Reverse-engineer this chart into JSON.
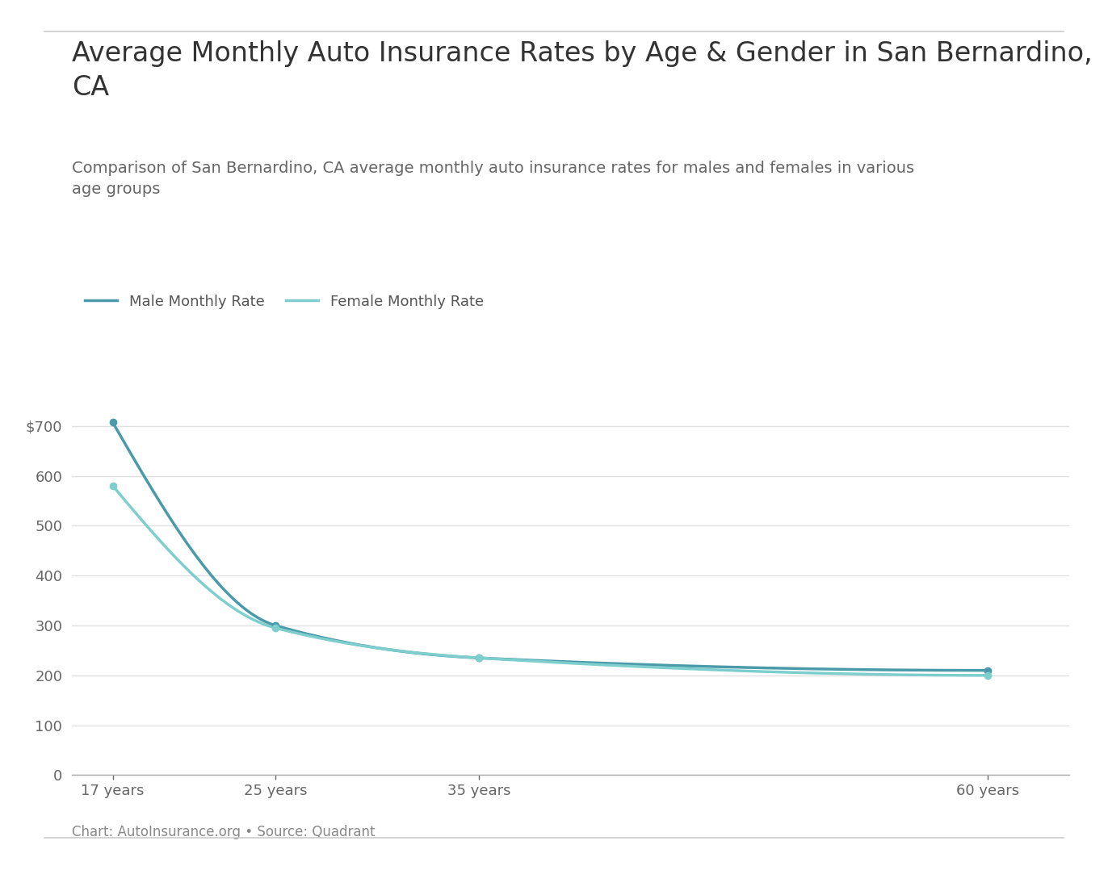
{
  "title": "Average Monthly Auto Insurance Rates by Age & Gender in San Bernardino,\nCA",
  "subtitle": "Comparison of San Bernardino, CA average monthly auto insurance rates for males and females in various\nage groups",
  "footnote": "Chart: AutoInsurance.org • Source: Quadrant",
  "ages": [
    17,
    25,
    35,
    60
  ],
  "age_labels": [
    "17 years",
    "25 years",
    "35 years",
    "60 years"
  ],
  "male_rates": [
    707,
    300,
    235,
    210
  ],
  "female_rates": [
    580,
    295,
    235,
    200
  ],
  "male_color": "#4a9aaa",
  "female_color": "#7ecece",
  "male_label": "Male Monthly Rate",
  "female_label": "Female Monthly Rate",
  "ylim": [
    0,
    750
  ],
  "yticks": [
    0,
    100,
    200,
    300,
    400,
    500,
    600,
    700
  ],
  "background_color": "#ffffff",
  "grid_color": "#e0e0e0",
  "title_fontsize": 24,
  "subtitle_fontsize": 14,
  "tick_fontsize": 13,
  "legend_fontsize": 13,
  "footnote_fontsize": 12
}
